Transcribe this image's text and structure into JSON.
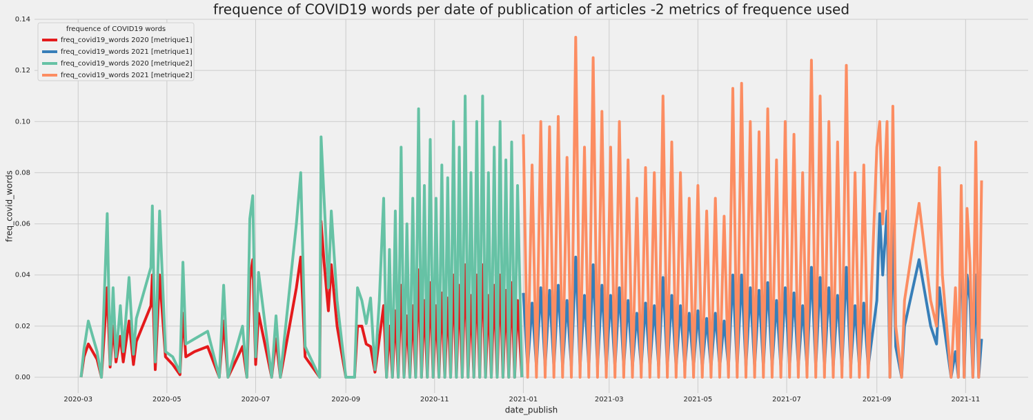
{
  "chart_data": {
    "type": "line",
    "title": "frequence of COVID19 words per date of publication of articles -2 metrics of frequence used",
    "x_label": "date_publish",
    "y_label": "freq_covid_words",
    "legend_title": "frequence of COVID19 words",
    "legend": "upper left",
    "grid": true,
    "xlim": [
      "2020-01-31",
      "2021-12-14"
    ],
    "xticks": [
      {
        "value": "2020-03-01",
        "label": "2020-03"
      },
      {
        "value": "2020-05-01",
        "label": "2020-05"
      },
      {
        "value": "2020-07-01",
        "label": "2020-07"
      },
      {
        "value": "2020-09-01",
        "label": "2020-09"
      },
      {
        "value": "2020-11-01",
        "label": "2020-11"
      },
      {
        "value": "2021-01-01",
        "label": "2021-01"
      },
      {
        "value": "2021-03-01",
        "label": "2021-03"
      },
      {
        "value": "2021-05-01",
        "label": "2021-05"
      },
      {
        "value": "2021-07-01",
        "label": "2021-07"
      },
      {
        "value": "2021-09-01",
        "label": "2021-09"
      },
      {
        "value": "2021-11-01",
        "label": "2021-11"
      }
    ],
    "ylim": [
      -0.0062,
      0.14
    ],
    "yticks": [
      {
        "value": 0,
        "label": "0.00"
      },
      {
        "value": 0.02,
        "label": "0.02"
      },
      {
        "value": 0.04,
        "label": "0.04"
      },
      {
        "value": 0.06,
        "label": "0.06"
      },
      {
        "value": 0.08,
        "label": "0.08"
      },
      {
        "value": 0.1,
        "label": "0.10"
      },
      {
        "value": 0.12,
        "label": "0.12"
      },
      {
        "value": 0.14,
        "label": "0.14"
      }
    ],
    "series": [
      {
        "name": "freq_covid19_words 2020 [metrique1]",
        "color": "#e41a1c",
        "x": [
          "2020-03-03",
          "2020-03-05",
          "2020-03-08",
          "2020-03-14",
          "2020-03-17",
          "2020-03-21",
          "2020-03-23",
          "2020-03-25",
          "2020-03-27",
          "2020-03-30",
          "2020-04-01",
          "2020-04-05",
          "2020-04-08",
          "2020-04-10",
          "2020-04-20",
          "2020-04-21",
          "2020-04-23",
          "2020-04-26",
          "2020-04-30",
          "2020-05-05",
          "2020-05-10",
          "2020-05-12",
          "2020-05-14",
          "2020-05-20",
          "2020-05-29",
          "2020-06-06",
          "2020-06-09",
          "2020-06-12",
          "2020-06-22",
          "2020-06-25",
          "2020-06-27",
          "2020-06-29",
          "2020-07-01",
          "2020-07-03",
          "2020-07-12",
          "2020-07-15",
          "2020-07-18",
          "2020-07-29",
          "2020-08-01",
          "2020-08-04",
          "2020-08-14",
          "2020-08-15",
          "2020-08-17",
          "2020-08-20",
          "2020-08-22",
          "2020-08-26",
          "2020-09-01",
          "2020-09-07",
          "2020-09-09",
          "2020-09-12",
          "2020-09-15",
          "2020-09-18",
          "2020-09-21",
          "2020-09-24",
          "2020-09-27",
          "2020-09-29",
          "2020-10-01",
          "2020-10-03",
          "2020-10-05",
          "2020-10-07",
          "2020-10-09",
          "2020-10-11",
          "2020-10-13",
          "2020-10-15",
          "2020-10-17",
          "2020-10-19",
          "2020-10-21",
          "2020-10-23",
          "2020-10-25",
          "2020-10-27",
          "2020-10-29",
          "2020-10-31",
          "2020-11-02",
          "2020-11-04",
          "2020-11-06",
          "2020-11-08",
          "2020-11-10",
          "2020-11-12",
          "2020-11-14",
          "2020-11-16",
          "2020-11-18",
          "2020-11-20",
          "2020-11-22",
          "2020-11-24",
          "2020-11-26",
          "2020-11-28",
          "2020-11-30",
          "2020-12-02",
          "2020-12-04",
          "2020-12-06",
          "2020-12-08",
          "2020-12-10",
          "2020-12-12",
          "2020-12-14",
          "2020-12-16",
          "2020-12-18",
          "2020-12-20",
          "2020-12-22",
          "2020-12-24",
          "2020-12-26",
          "2020-12-28",
          "2020-12-31"
        ],
        "values": [
          0,
          0.008,
          0.013,
          0.007,
          0,
          0.035,
          0.004,
          0.02,
          0.006,
          0.016,
          0.006,
          0.022,
          0.005,
          0.014,
          0.028,
          0.04,
          0.003,
          0.04,
          0.008,
          0.005,
          0.001,
          0.025,
          0.008,
          0.01,
          0.012,
          0,
          0.022,
          0,
          0.012,
          0,
          0.038,
          0.046,
          0.005,
          0.025,
          0,
          0.015,
          0,
          0.035,
          0.047,
          0.008,
          0,
          0.061,
          0.045,
          0.026,
          0.044,
          0.02,
          0,
          0,
          0.02,
          0.02,
          0.013,
          0.012,
          0.002,
          0.015,
          0.028,
          0,
          0.02,
          0,
          0.026,
          0,
          0.036,
          0,
          0.024,
          0,
          0.028,
          0,
          0.042,
          0,
          0.03,
          0,
          0.037,
          0,
          0.028,
          0,
          0.033,
          0,
          0.031,
          0,
          0.04,
          0,
          0.036,
          0,
          0.044,
          0,
          0.032,
          0,
          0.04,
          0,
          0.044,
          0,
          0.032,
          0,
          0.036,
          0,
          0.04,
          0,
          0.034,
          0,
          0.037,
          0,
          0.03,
          0
        ]
      },
      {
        "name": "freq_covid19_words 2021 [metrique1]",
        "color": "#377eb8",
        "x": [
          "2021-01-01",
          "2021-01-04",
          "2021-01-07",
          "2021-01-10",
          "2021-01-13",
          "2021-01-16",
          "2021-01-19",
          "2021-01-22",
          "2021-01-25",
          "2021-01-28",
          "2021-01-31",
          "2021-02-03",
          "2021-02-06",
          "2021-02-09",
          "2021-02-12",
          "2021-02-15",
          "2021-02-18",
          "2021-02-21",
          "2021-02-24",
          "2021-02-27",
          "2021-03-02",
          "2021-03-05",
          "2021-03-08",
          "2021-03-11",
          "2021-03-14",
          "2021-03-17",
          "2021-03-20",
          "2021-03-23",
          "2021-03-26",
          "2021-03-29",
          "2021-04-01",
          "2021-04-04",
          "2021-04-07",
          "2021-04-10",
          "2021-04-13",
          "2021-04-16",
          "2021-04-19",
          "2021-04-22",
          "2021-04-25",
          "2021-04-28",
          "2021-05-01",
          "2021-05-04",
          "2021-05-07",
          "2021-05-10",
          "2021-05-13",
          "2021-05-16",
          "2021-05-19",
          "2021-05-22",
          "2021-05-25",
          "2021-05-28",
          "2021-05-31",
          "2021-06-03",
          "2021-06-06",
          "2021-06-09",
          "2021-06-12",
          "2021-06-15",
          "2021-06-18",
          "2021-06-21",
          "2021-06-24",
          "2021-06-27",
          "2021-06-30",
          "2021-07-03",
          "2021-07-06",
          "2021-07-09",
          "2021-07-12",
          "2021-07-15",
          "2021-07-18",
          "2021-07-21",
          "2021-07-24",
          "2021-07-27",
          "2021-07-30",
          "2021-08-02",
          "2021-08-05",
          "2021-08-08",
          "2021-08-11",
          "2021-08-14",
          "2021-08-17",
          "2021-08-20",
          "2021-08-23",
          "2021-08-26",
          "2021-09-01",
          "2021-09-03",
          "2021-09-05",
          "2021-09-08",
          "2021-09-10",
          "2021-09-12",
          "2021-09-14",
          "2021-09-18",
          "2021-09-20",
          "2021-09-30",
          "2021-10-08",
          "2021-10-12",
          "2021-10-14",
          "2021-10-16",
          "2021-10-22",
          "2021-10-25",
          "2021-10-27",
          "2021-10-29",
          "2021-10-31",
          "2021-11-02",
          "2021-11-04",
          "2021-11-06",
          "2021-11-08",
          "2021-11-10",
          "2021-11-12"
        ],
        "values": [
          0.033,
          0.004,
          0.029,
          0.004,
          0.035,
          0.004,
          0.034,
          0.004,
          0.036,
          0.004,
          0.03,
          0.004,
          0.047,
          0.004,
          0.032,
          0.004,
          0.044,
          0.004,
          0.036,
          0.004,
          0.032,
          0.004,
          0.035,
          0.004,
          0.03,
          0.004,
          0.025,
          0.004,
          0.029,
          0.004,
          0.028,
          0.004,
          0.039,
          0.004,
          0.032,
          0.004,
          0.028,
          0.004,
          0.025,
          0.004,
          0.026,
          0.004,
          0.023,
          0.004,
          0.025,
          0.004,
          0.022,
          0.004,
          0.04,
          0.004,
          0.04,
          0.004,
          0.035,
          0.004,
          0.034,
          0.004,
          0.037,
          0.004,
          0.03,
          0.004,
          0.035,
          0.004,
          0.033,
          0.004,
          0.028,
          0.004,
          0.043,
          0.004,
          0.039,
          0.004,
          0.035,
          0.004,
          0.032,
          0.004,
          0.043,
          0.004,
          0.028,
          0.004,
          0.029,
          0.004,
          0.03,
          0.064,
          0.04,
          0.065,
          0,
          0.06,
          0.012,
          0,
          0.02,
          0.046,
          0.02,
          0.013,
          0.035,
          0.025,
          0,
          0.01,
          0,
          0.06,
          0,
          0.04,
          0.03,
          0,
          0.04,
          0,
          0.015
        ]
      },
      {
        "name": "freq_covid19_words 2020 [metrique2]",
        "color": "#66c2a5",
        "x": [
          "2020-03-03",
          "2020-03-05",
          "2020-03-08",
          "2020-03-14",
          "2020-03-17",
          "2020-03-21",
          "2020-03-23",
          "2020-03-25",
          "2020-03-27",
          "2020-03-30",
          "2020-04-01",
          "2020-04-05",
          "2020-04-08",
          "2020-04-10",
          "2020-04-20",
          "2020-04-21",
          "2020-04-23",
          "2020-04-26",
          "2020-04-30",
          "2020-05-05",
          "2020-05-10",
          "2020-05-12",
          "2020-05-14",
          "2020-05-20",
          "2020-05-29",
          "2020-06-06",
          "2020-06-09",
          "2020-06-12",
          "2020-06-22",
          "2020-06-25",
          "2020-06-27",
          "2020-06-29",
          "2020-07-01",
          "2020-07-03",
          "2020-07-12",
          "2020-07-15",
          "2020-07-18",
          "2020-07-29",
          "2020-08-01",
          "2020-08-04",
          "2020-08-14",
          "2020-08-15",
          "2020-08-17",
          "2020-08-20",
          "2020-08-22",
          "2020-08-26",
          "2020-09-01",
          "2020-09-07",
          "2020-09-09",
          "2020-09-12",
          "2020-09-15",
          "2020-09-18",
          "2020-09-21",
          "2020-09-24",
          "2020-09-27",
          "2020-09-29",
          "2020-10-01",
          "2020-10-03",
          "2020-10-05",
          "2020-10-07",
          "2020-10-09",
          "2020-10-11",
          "2020-10-13",
          "2020-10-15",
          "2020-10-17",
          "2020-10-19",
          "2020-10-21",
          "2020-10-23",
          "2020-10-25",
          "2020-10-27",
          "2020-10-29",
          "2020-10-31",
          "2020-11-02",
          "2020-11-04",
          "2020-11-06",
          "2020-11-08",
          "2020-11-10",
          "2020-11-12",
          "2020-11-14",
          "2020-11-16",
          "2020-11-18",
          "2020-11-20",
          "2020-11-22",
          "2020-11-24",
          "2020-11-26",
          "2020-11-28",
          "2020-11-30",
          "2020-12-02",
          "2020-12-04",
          "2020-12-06",
          "2020-12-08",
          "2020-12-10",
          "2020-12-12",
          "2020-12-14",
          "2020-12-16",
          "2020-12-18",
          "2020-12-20",
          "2020-12-22",
          "2020-12-24",
          "2020-12-26",
          "2020-12-28",
          "2020-12-31"
        ],
        "values": [
          0,
          0.011,
          0.022,
          0.01,
          0,
          0.064,
          0.005,
          0.035,
          0.008,
          0.028,
          0.01,
          0.039,
          0.009,
          0.023,
          0.043,
          0.067,
          0.006,
          0.065,
          0.01,
          0.008,
          0.002,
          0.045,
          0.013,
          0.015,
          0.018,
          0,
          0.036,
          0,
          0.02,
          0,
          0.062,
          0.071,
          0.008,
          0.041,
          0,
          0.024,
          0,
          0.06,
          0.08,
          0.012,
          0,
          0.094,
          0.07,
          0.035,
          0.065,
          0.03,
          0,
          0,
          0.035,
          0.03,
          0.021,
          0.031,
          0.003,
          0.03,
          0.07,
          0,
          0.05,
          0,
          0.065,
          0,
          0.09,
          0,
          0.06,
          0,
          0.07,
          0,
          0.105,
          0,
          0.075,
          0,
          0.093,
          0,
          0.07,
          0,
          0.083,
          0,
          0.078,
          0,
          0.1,
          0,
          0.09,
          0,
          0.11,
          0,
          0.08,
          0,
          0.1,
          0,
          0.11,
          0,
          0.08,
          0,
          0.09,
          0,
          0.1,
          0,
          0.085,
          0,
          0.092,
          0,
          0.075,
          0
        ]
      },
      {
        "name": "freq_covid19_words 2021 [metrique2]",
        "color": "#fc8d62",
        "x": [
          "2021-01-01",
          "2021-01-04",
          "2021-01-07",
          "2021-01-10",
          "2021-01-13",
          "2021-01-16",
          "2021-01-19",
          "2021-01-22",
          "2021-01-25",
          "2021-01-28",
          "2021-01-31",
          "2021-02-03",
          "2021-02-06",
          "2021-02-09",
          "2021-02-12",
          "2021-02-15",
          "2021-02-18",
          "2021-02-21",
          "2021-02-24",
          "2021-02-27",
          "2021-03-02",
          "2021-03-05",
          "2021-03-08",
          "2021-03-11",
          "2021-03-14",
          "2021-03-17",
          "2021-03-20",
          "2021-03-23",
          "2021-03-26",
          "2021-03-29",
          "2021-04-01",
          "2021-04-04",
          "2021-04-07",
          "2021-04-10",
          "2021-04-13",
          "2021-04-16",
          "2021-04-19",
          "2021-04-22",
          "2021-04-25",
          "2021-04-28",
          "2021-05-01",
          "2021-05-04",
          "2021-05-07",
          "2021-05-10",
          "2021-05-13",
          "2021-05-16",
          "2021-05-19",
          "2021-05-22",
          "2021-05-25",
          "2021-05-28",
          "2021-05-31",
          "2021-06-03",
          "2021-06-06",
          "2021-06-09",
          "2021-06-12",
          "2021-06-15",
          "2021-06-18",
          "2021-06-21",
          "2021-06-24",
          "2021-06-27",
          "2021-06-30",
          "2021-07-03",
          "2021-07-06",
          "2021-07-09",
          "2021-07-12",
          "2021-07-15",
          "2021-07-18",
          "2021-07-21",
          "2021-07-24",
          "2021-07-27",
          "2021-07-30",
          "2021-08-02",
          "2021-08-05",
          "2021-08-08",
          "2021-08-11",
          "2021-08-14",
          "2021-08-17",
          "2021-08-20",
          "2021-08-23",
          "2021-08-26",
          "2021-09-01",
          "2021-09-03",
          "2021-09-05",
          "2021-09-08",
          "2021-09-10",
          "2021-09-12",
          "2021-09-14",
          "2021-09-18",
          "2021-09-20",
          "2021-09-30",
          "2021-10-08",
          "2021-10-12",
          "2021-10-14",
          "2021-10-16",
          "2021-10-22",
          "2021-10-25",
          "2021-10-27",
          "2021-10-29",
          "2021-10-31",
          "2021-11-02",
          "2021-11-04",
          "2021-11-06",
          "2021-11-08",
          "2021-11-10",
          "2021-11-12"
        ],
        "values": [
          0.095,
          0,
          0.083,
          0,
          0.1,
          0,
          0.098,
          0,
          0.102,
          0,
          0.086,
          0,
          0.133,
          0,
          0.09,
          0,
          0.125,
          0,
          0.104,
          0,
          0.09,
          0,
          0.1,
          0,
          0.085,
          0,
          0.07,
          0,
          0.082,
          0,
          0.08,
          0,
          0.11,
          0,
          0.092,
          0,
          0.08,
          0,
          0.07,
          0,
          0.075,
          0,
          0.065,
          0,
          0.07,
          0,
          0.063,
          0,
          0.113,
          0,
          0.115,
          0,
          0.1,
          0,
          0.096,
          0,
          0.105,
          0,
          0.085,
          0,
          0.1,
          0,
          0.095,
          0,
          0.08,
          0,
          0.124,
          0,
          0.11,
          0,
          0.1,
          0,
          0.092,
          0,
          0.122,
          0,
          0.08,
          0,
          0.083,
          0,
          0.09,
          0.1,
          0.06,
          0.1,
          0,
          0.106,
          0.02,
          0,
          0.03,
          0.068,
          0.03,
          0.02,
          0.082,
          0.04,
          0,
          0.035,
          0,
          0.075,
          0,
          0.066,
          0.045,
          0,
          0.092,
          0,
          0.077
        ]
      }
    ]
  }
}
